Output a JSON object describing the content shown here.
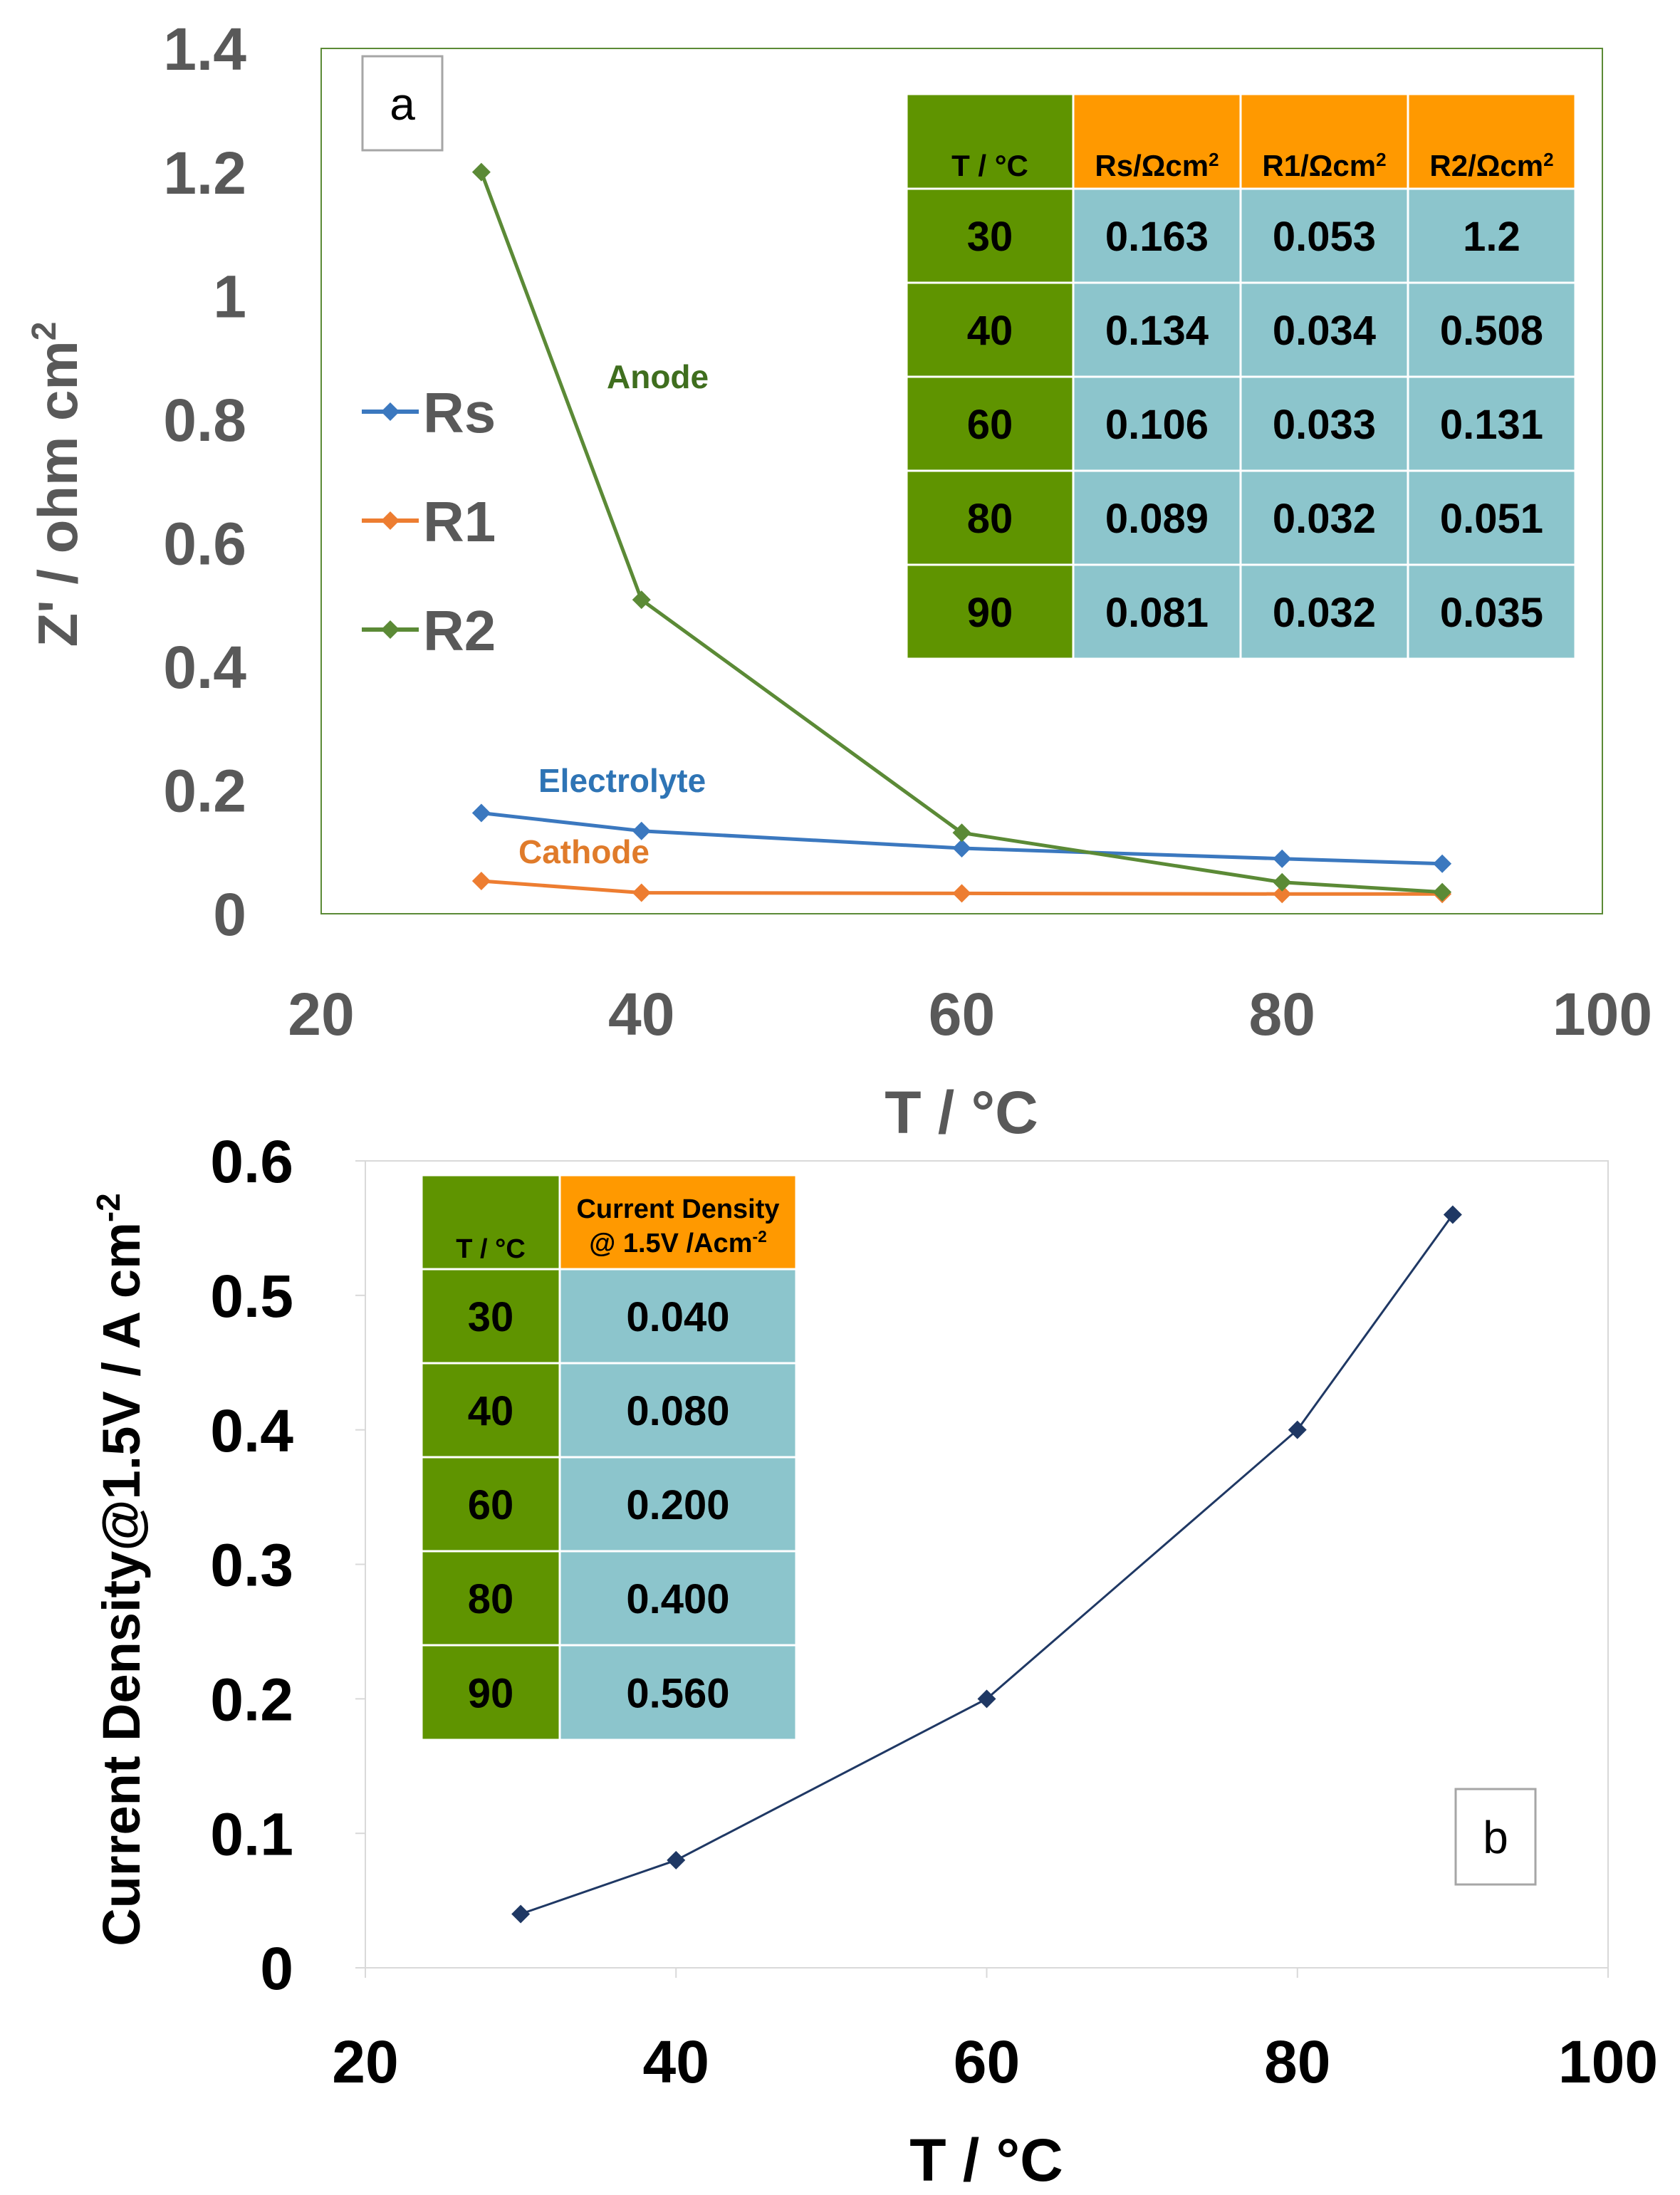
{
  "chart_data": [
    {
      "type": "line",
      "panel_label": "a",
      "xlabel": "T / °C",
      "ylabel": "Z' / ohm cm",
      "ylabel_sup": "2",
      "xlim": [
        20,
        100
      ],
      "ylim": [
        0,
        1.4
      ],
      "x_ticks": [
        "20",
        "40",
        "60",
        "80",
        "100"
      ],
      "y_ticks": [
        "0",
        "0.2",
        "0.4",
        "0.6",
        "0.8",
        "1",
        "1.2",
        "1.4"
      ],
      "x": [
        30,
        40,
        60,
        80,
        90
      ],
      "series": [
        {
          "name": "Rs",
          "color": "#3b78bf",
          "values": [
            0.163,
            0.134,
            0.106,
            0.089,
            0.081
          ]
        },
        {
          "name": "R1",
          "color": "#ed7d31",
          "values": [
            0.053,
            0.034,
            0.033,
            0.032,
            0.032
          ]
        },
        {
          "name": "R2",
          "color": "#5b8a36",
          "values": [
            1.2,
            0.508,
            0.131,
            0.051,
            0.035
          ]
        }
      ],
      "annotations": [
        {
          "text": "Anode",
          "color": "#3f6e1e"
        },
        {
          "text": "Electrolyte",
          "color": "#2e74b5"
        },
        {
          "text": "Cathode",
          "color": "#e07b2a"
        }
      ],
      "table": {
        "header": [
          "T / °C",
          "Rs/Ωcm",
          "R1/Ωcm",
          "R2/Ωcm"
        ],
        "header_sup": "2",
        "rows": [
          [
            "30",
            "0.163",
            "0.053",
            "1.2"
          ],
          [
            "40",
            "0.134",
            "0.034",
            "0.508"
          ],
          [
            "60",
            "0.106",
            "0.033",
            "0.131"
          ],
          [
            "80",
            "0.089",
            "0.032",
            "0.051"
          ],
          [
            "90",
            "0.081",
            "0.032",
            "0.035"
          ]
        ]
      },
      "colors": {
        "table_left": "#5f9400",
        "table_header": "#ff9900",
        "table_cell": "#8cc5cc",
        "frame": "#5b8a36"
      }
    },
    {
      "type": "line",
      "panel_label": "b",
      "xlabel": "T / °C",
      "ylabel": "Current Density@1.5V / A cm",
      "ylabel_sup": "-2",
      "xlim": [
        20,
        100
      ],
      "ylim": [
        0,
        0.6
      ],
      "x_ticks": [
        "20",
        "40",
        "60",
        "80",
        "100"
      ],
      "y_ticks": [
        "0",
        "0.1",
        "0.2",
        "0.3",
        "0.4",
        "0.5",
        "0.6"
      ],
      "x": [
        30,
        40,
        60,
        80,
        90
      ],
      "series": [
        {
          "name": "Current Density",
          "color": "#1f3864",
          "values": [
            0.04,
            0.08,
            0.2,
            0.4,
            0.56
          ]
        }
      ],
      "table": {
        "header": [
          "T / °C",
          "Current Density",
          "@ 1.5V /Acm"
        ],
        "header_sup": "-2",
        "rows": [
          [
            "30",
            "0.040"
          ],
          [
            "40",
            "0.080"
          ],
          [
            "60",
            "0.200"
          ],
          [
            "80",
            "0.400"
          ],
          [
            "90",
            "0.560"
          ]
        ]
      }
    }
  ]
}
